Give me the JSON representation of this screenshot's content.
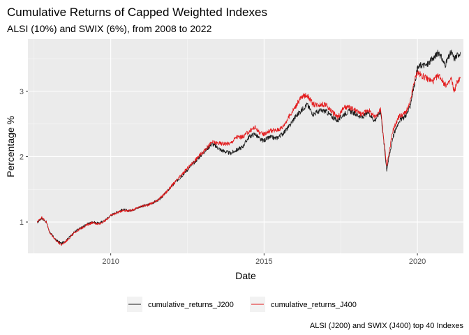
{
  "chart_data": {
    "type": "line",
    "title": "Cumulative Returns of Capped Weighted Indexes",
    "subtitle": "ALSI (10%) and SWIX (6%), from 2008 to 2022",
    "xlabel": "Date",
    "ylabel": "Percentage %",
    "caption": "ALSI (J200) and SWIX (J400) top 40 Indexes",
    "xlim": [
      2007.3,
      2021.5
    ],
    "ylim": [
      0.52,
      3.8
    ],
    "x_ticks": [
      2010,
      2015,
      2020
    ],
    "x_tick_labels": [
      "2010",
      "2015",
      "2020"
    ],
    "y_ticks": [
      1,
      2,
      3
    ],
    "y_tick_labels": [
      "1",
      "2",
      "3"
    ],
    "grid": true,
    "legend_position": "bottom",
    "colors": {
      "panel": "#ebebeb",
      "grid": "#ffffff",
      "J200": "#1a1a1a",
      "J400": "#e31a1c"
    },
    "series": [
      {
        "name": "cumulative_returns_J200",
        "color": "#1a1a1a",
        "x": [
          2007.6,
          2007.75,
          2007.9,
          2008.0,
          2008.2,
          2008.4,
          2008.55,
          2008.7,
          2008.85,
          2009.0,
          2009.2,
          2009.4,
          2009.6,
          2009.8,
          2010.0,
          2010.2,
          2010.4,
          2010.6,
          2010.8,
          2011.0,
          2011.2,
          2011.4,
          2011.6,
          2011.8,
          2012.0,
          2012.2,
          2012.5,
          2012.8,
          2013.0,
          2013.3,
          2013.6,
          2013.9,
          2014.1,
          2014.3,
          2014.5,
          2014.7,
          2014.9,
          2015.0,
          2015.2,
          2015.4,
          2015.6,
          2015.8,
          2016.0,
          2016.2,
          2016.4,
          2016.6,
          2016.8,
          2017.0,
          2017.2,
          2017.4,
          2017.6,
          2017.8,
          2018.0,
          2018.2,
          2018.4,
          2018.6,
          2018.8,
          2019.0,
          2019.2,
          2019.4,
          2019.55,
          2019.65,
          2019.75,
          2019.9,
          2020.0,
          2020.1,
          2020.3,
          2020.5,
          2020.7,
          2020.9,
          2021.0,
          2021.1,
          2021.2,
          2021.3,
          2021.4
        ],
        "values": [
          0.99,
          1.06,
          1.0,
          0.85,
          0.73,
          0.67,
          0.72,
          0.79,
          0.86,
          0.9,
          0.96,
          1.0,
          0.98,
          1.02,
          1.1,
          1.15,
          1.19,
          1.17,
          1.2,
          1.24,
          1.26,
          1.3,
          1.35,
          1.45,
          1.55,
          1.65,
          1.8,
          1.95,
          2.05,
          2.2,
          2.1,
          2.05,
          2.1,
          2.15,
          2.3,
          2.35,
          2.25,
          2.25,
          2.3,
          2.28,
          2.35,
          2.45,
          2.6,
          2.7,
          2.8,
          2.65,
          2.7,
          2.7,
          2.62,
          2.55,
          2.65,
          2.7,
          2.65,
          2.6,
          2.68,
          2.55,
          2.7,
          1.8,
          2.3,
          2.55,
          2.6,
          2.65,
          2.75,
          3.1,
          3.35,
          3.4,
          3.4,
          3.5,
          3.6,
          3.4,
          3.5,
          3.6,
          3.5,
          3.55,
          3.6
        ]
      },
      {
        "name": "cumulative_returns_J400",
        "color": "#e31a1c",
        "x": [
          2007.6,
          2007.75,
          2007.9,
          2008.0,
          2008.2,
          2008.4,
          2008.55,
          2008.7,
          2008.85,
          2009.0,
          2009.2,
          2009.4,
          2009.6,
          2009.8,
          2010.0,
          2010.2,
          2010.4,
          2010.6,
          2010.8,
          2011.0,
          2011.2,
          2011.4,
          2011.6,
          2011.8,
          2012.0,
          2012.2,
          2012.5,
          2012.8,
          2013.0,
          2013.3,
          2013.6,
          2013.9,
          2014.1,
          2014.3,
          2014.5,
          2014.7,
          2014.9,
          2015.0,
          2015.2,
          2015.4,
          2015.6,
          2015.8,
          2016.0,
          2016.2,
          2016.4,
          2016.6,
          2016.8,
          2017.0,
          2017.2,
          2017.4,
          2017.6,
          2017.8,
          2018.0,
          2018.2,
          2018.4,
          2018.6,
          2018.8,
          2019.0,
          2019.2,
          2019.4,
          2019.55,
          2019.65,
          2019.75,
          2019.9,
          2020.0,
          2020.1,
          2020.3,
          2020.5,
          2020.7,
          2020.9,
          2021.0,
          2021.1,
          2021.2,
          2021.3,
          2021.4
        ],
        "values": [
          1.0,
          1.07,
          1.0,
          0.85,
          0.72,
          0.65,
          0.71,
          0.78,
          0.85,
          0.89,
          0.95,
          0.99,
          0.97,
          1.01,
          1.1,
          1.14,
          1.18,
          1.17,
          1.2,
          1.24,
          1.26,
          1.3,
          1.36,
          1.45,
          1.56,
          1.66,
          1.82,
          1.97,
          2.07,
          2.22,
          2.2,
          2.2,
          2.3,
          2.3,
          2.38,
          2.45,
          2.35,
          2.35,
          2.4,
          2.4,
          2.45,
          2.6,
          2.75,
          2.9,
          2.95,
          2.8,
          2.8,
          2.8,
          2.7,
          2.6,
          2.75,
          2.75,
          2.7,
          2.65,
          2.72,
          2.6,
          2.72,
          1.85,
          2.4,
          2.62,
          2.65,
          2.7,
          2.8,
          3.15,
          3.3,
          3.25,
          3.2,
          3.15,
          3.25,
          3.1,
          3.1,
          3.2,
          3.0,
          3.15,
          3.2
        ]
      }
    ]
  }
}
